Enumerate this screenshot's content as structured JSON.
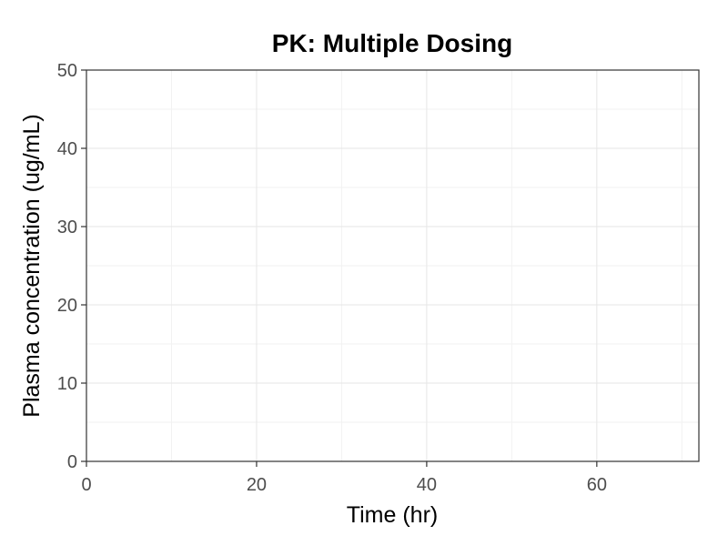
{
  "chart_data": {
    "type": "line",
    "title": "PK: Multiple Dosing",
    "xlabel": "Time (hr)",
    "ylabel": "Plasma concentration (ug/mL)",
    "xlim": [
      0,
      72
    ],
    "ylim": [
      0,
      50
    ],
    "x_ticks": [
      0,
      20,
      40,
      60
    ],
    "x_tick_labels": [
      "0",
      "20",
      "40",
      "60"
    ],
    "y_ticks": [
      0,
      10,
      20,
      30,
      40,
      50
    ],
    "y_tick_labels": [
      "0",
      "10",
      "20",
      "30",
      "40",
      "50"
    ],
    "x_minor_ticks": [
      10,
      30,
      50,
      70
    ],
    "y_minor_ticks": [
      5,
      15,
      25,
      35,
      45
    ],
    "grid": true,
    "series": []
  },
  "colors": {
    "background": "#ffffff",
    "grid_major": "#e6e6e6",
    "grid_minor": "#f2f2f2",
    "panel_border": "#333333",
    "tick_label": "#4d4d4d",
    "text": "#000000"
  }
}
